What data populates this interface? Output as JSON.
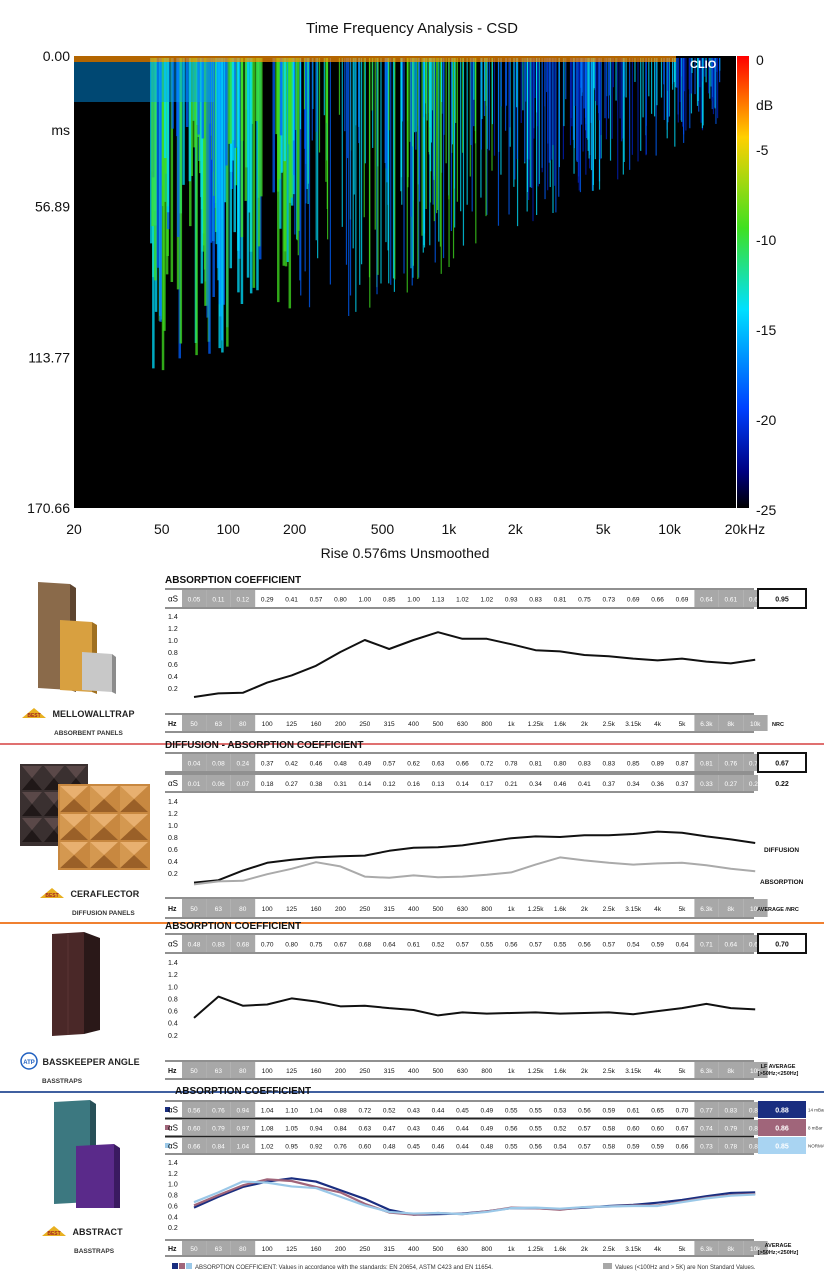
{
  "csd": {
    "title": "Time Frequency Analysis - CSD",
    "footer": "Rise 0.576ms   Unsmoothed",
    "y_ticks": [
      "0.00",
      "ms",
      "56.89",
      "113.77",
      "170.66"
    ],
    "x_ticks": [
      "20",
      "50",
      "100",
      "200",
      "500",
      "1k",
      "2k",
      "5k",
      "10k",
      "20k",
      "Hz"
    ],
    "scale_ticks": [
      "0",
      "dB",
      "-5",
      "-10",
      "-15",
      "-20",
      "-25"
    ],
    "watermark": "CLIO"
  },
  "freq_labels": [
    "50",
    "63",
    "80",
    "100",
    "125",
    "160",
    "200",
    "250",
    "315",
    "400",
    "500",
    "630",
    "800",
    "1k",
    "1.25k",
    "1.6k",
    "2k",
    "2.5k",
    "3.15k",
    "4k",
    "5k",
    "6.3k",
    "8k",
    "10k"
  ],
  "y_axis_ticks": [
    "1.4",
    "1.2",
    "1.0",
    "0.8",
    "0.6",
    "0.4",
    "0.2"
  ],
  "products": [
    {
      "name": "MELLOWALLTRAP",
      "sub": "ABSORBENT PANELS"
    },
    {
      "name": "CERAFLECTOR",
      "sub": "DIFFUSION PANELS"
    },
    {
      "name": "BASSKEEPER ANGLE",
      "sub": "BASSTRAPS"
    },
    {
      "name": "ABSTRACT",
      "sub": "BASSTRAPS"
    }
  ],
  "sections": [
    {
      "title": "ABSORPTION COEFFICIENT",
      "hz_label": "Hz",
      "summary_label": "NRC",
      "rows": [
        {
          "label": "αS",
          "values": [
            "0.05",
            "0.11",
            "0.12",
            "0.29",
            "0.41",
            "0.57",
            "0.80",
            "1.00",
            "0.85",
            "1.00",
            "1.13",
            "1.02",
            "1.02",
            "0.93",
            "0.83",
            "0.81",
            "0.75",
            "0.73",
            "0.69",
            "0.66",
            "0.69",
            "0.64",
            "0.61",
            "0.67"
          ],
          "summary": "0.95"
        }
      ]
    },
    {
      "title": "DIFFUSION - ABSORPTION COEFFICIENT",
      "hz_label": "Hz",
      "summary_label": "AVERAGE /NRC",
      "rows": [
        {
          "label": "",
          "values": [
            "0.04",
            "0.08",
            "0.24",
            "0.37",
            "0.42",
            "0.46",
            "0.48",
            "0.49",
            "0.57",
            "0.62",
            "0.63",
            "0.66",
            "0.72",
            "0.78",
            "0.81",
            "0.80",
            "0.83",
            "0.83",
            "0.85",
            "0.89",
            "0.87",
            "0.81",
            "0.76",
            "0.70"
          ],
          "summary": "0.67"
        },
        {
          "label": "αS",
          "values": [
            "0.01",
            "0.06",
            "0.07",
            "0.18",
            "0.27",
            "0.38",
            "0.31",
            "0.14",
            "0.12",
            "0.16",
            "0.13",
            "0.14",
            "0.17",
            "0.21",
            "0.34",
            "0.46",
            "0.41",
            "0.37",
            "0.34",
            "0.36",
            "0.37",
            "0.33",
            "0.27",
            "0.23"
          ],
          "summary": "0.22"
        }
      ],
      "line_labels": [
        "DIFFUSION",
        "ABSORPTION"
      ]
    },
    {
      "title": "ABSORPTION COEFFICIENT",
      "hz_label": "Hz",
      "summary_label": "LF AVERAGE [>50Hz;<250Hz]",
      "rows": [
        {
          "label": "αS",
          "values": [
            "0.48",
            "0.83",
            "0.68",
            "0.70",
            "0.80",
            "0.75",
            "0.67",
            "0.68",
            "0.64",
            "0.61",
            "0.52",
            "0.57",
            "0.55",
            "0.56",
            "0.57",
            "0.55",
            "0.56",
            "0.57",
            "0.54",
            "0.59",
            "0.64",
            "0.71",
            "0.64",
            "0.62"
          ],
          "summary": "0.70"
        }
      ]
    },
    {
      "title": "ABSORPTION COEFFICIENT",
      "hz_label": "Hz",
      "summary_label": "AVERAGE [>50Hz;<250Hz]",
      "rows": [
        {
          "label": "αS",
          "values": [
            "0.56",
            "0.76",
            "0.94",
            "1.04",
            "1.10",
            "1.04",
            "0.88",
            "0.72",
            "0.52",
            "0.43",
            "0.44",
            "0.45",
            "0.49",
            "0.55",
            "0.55",
            "0.53",
            "0.56",
            "0.59",
            "0.61",
            "0.65",
            "0.70",
            "0.77",
            "0.83",
            "0.84"
          ],
          "summary": "0.88",
          "note": "14 mBar PRESSURE"
        },
        {
          "label": "αS",
          "values": [
            "0.60",
            "0.79",
            "0.97",
            "1.08",
            "1.05",
            "0.94",
            "0.84",
            "0.63",
            "0.47",
            "0.43",
            "0.46",
            "0.44",
            "0.49",
            "0.56",
            "0.55",
            "0.52",
            "0.57",
            "0.58",
            "0.60",
            "0.60",
            "0.67",
            "0.74",
            "0.79",
            "0.81"
          ],
          "summary": "0.86",
          "note": "8 mBar PRESSURE"
        },
        {
          "label": "αS",
          "values": [
            "0.66",
            "0.84",
            "1.04",
            "1.02",
            "0.95",
            "0.92",
            "0.76",
            "0.60",
            "0.48",
            "0.45",
            "0.46",
            "0.44",
            "0.48",
            "0.55",
            "0.56",
            "0.54",
            "0.57",
            "0.58",
            "0.59",
            "0.59",
            "0.66",
            "0.73",
            "0.78",
            "0.80"
          ],
          "summary": "0.85",
          "note": "NORMAL PRESSURE"
        }
      ],
      "footnote_left": "ABSORPTION COEFFICIENT: Values in accordance with the standards: EN 20654, ASTM C423 and EN 11654.",
      "footnote_right": "Values (<100Hz and > 5K) are Non Standard Values."
    }
  ],
  "colors": {
    "line": "#111111",
    "absorption_line": "#aaaaaa",
    "nonstd_cell": "#a8a8a8",
    "series": [
      "#1a2e80",
      "#a0657a",
      "#9ac8e8"
    ],
    "summary_fill": [
      "#1a2e80",
      "#a0657a",
      "#a9d4f2"
    ],
    "sep_red": "#e07070",
    "sep_orange": "#f08030",
    "sep_blue": "#4060a0"
  },
  "chart_data": [
    {
      "type": "heatmap",
      "title": "Time Frequency Analysis - CSD",
      "xlabel": "Hz",
      "ylabel": "ms",
      "x_scale": "log",
      "xlim": [
        20,
        20000
      ],
      "ylim": [
        0,
        170.66
      ],
      "colorbar": {
        "label": "dB",
        "range": [
          -25,
          0
        ]
      },
      "note": "Rise 0.576ms   Unsmoothed"
    },
    {
      "type": "line",
      "title": "ABSORPTION COEFFICIENT",
      "categories": [
        "50",
        "63",
        "80",
        "100",
        "125",
        "160",
        "200",
        "250",
        "315",
        "400",
        "500",
        "630",
        "800",
        "1k",
        "1.25k",
        "1.6k",
        "2k",
        "2.5k",
        "3.15k",
        "4k",
        "5k",
        "6.3k",
        "8k",
        "10k"
      ],
      "series": [
        {
          "name": "αS",
          "values": [
            0.05,
            0.11,
            0.12,
            0.29,
            0.41,
            0.57,
            0.8,
            1.0,
            0.85,
            1.0,
            1.13,
            1.02,
            1.02,
            0.93,
            0.83,
            0.81,
            0.75,
            0.73,
            0.69,
            0.66,
            0.69,
            0.64,
            0.61,
            0.67
          ]
        }
      ],
      "ylim": [
        0,
        1.4
      ]
    },
    {
      "type": "line",
      "title": "DIFFUSION - ABSORPTION COEFFICIENT",
      "categories": [
        "50",
        "63",
        "80",
        "100",
        "125",
        "160",
        "200",
        "250",
        "315",
        "400",
        "500",
        "630",
        "800",
        "1k",
        "1.25k",
        "1.6k",
        "2k",
        "2.5k",
        "3.15k",
        "4k",
        "5k",
        "6.3k",
        "8k",
        "10k"
      ],
      "series": [
        {
          "name": "DIFFUSION",
          "values": [
            0.04,
            0.08,
            0.24,
            0.37,
            0.42,
            0.46,
            0.48,
            0.49,
            0.57,
            0.62,
            0.63,
            0.66,
            0.72,
            0.78,
            0.81,
            0.8,
            0.83,
            0.83,
            0.85,
            0.89,
            0.87,
            0.81,
            0.76,
            0.7
          ]
        },
        {
          "name": "ABSORPTION",
          "values": [
            0.01,
            0.06,
            0.07,
            0.18,
            0.27,
            0.38,
            0.31,
            0.14,
            0.12,
            0.16,
            0.13,
            0.14,
            0.17,
            0.21,
            0.34,
            0.46,
            0.41,
            0.37,
            0.34,
            0.36,
            0.37,
            0.33,
            0.27,
            0.23
          ]
        }
      ],
      "ylim": [
        0,
        1.4
      ]
    },
    {
      "type": "line",
      "title": "ABSORPTION COEFFICIENT",
      "categories": [
        "50",
        "63",
        "80",
        "100",
        "125",
        "160",
        "200",
        "250",
        "315",
        "400",
        "500",
        "630",
        "800",
        "1k",
        "1.25k",
        "1.6k",
        "2k",
        "2.5k",
        "3.15k",
        "4k",
        "5k",
        "6.3k",
        "8k",
        "10k"
      ],
      "series": [
        {
          "name": "αS",
          "values": [
            0.48,
            0.83,
            0.68,
            0.7,
            0.8,
            0.75,
            0.67,
            0.68,
            0.64,
            0.61,
            0.52,
            0.57,
            0.55,
            0.56,
            0.57,
            0.55,
            0.56,
            0.57,
            0.54,
            0.59,
            0.64,
            0.71,
            0.64,
            0.62
          ]
        }
      ],
      "ylim": [
        0,
        1.4
      ]
    },
    {
      "type": "line",
      "title": "ABSORPTION COEFFICIENT",
      "categories": [
        "50",
        "63",
        "80",
        "100",
        "125",
        "160",
        "200",
        "250",
        "315",
        "400",
        "500",
        "630",
        "800",
        "1k",
        "1.25k",
        "1.6k",
        "2k",
        "2.5k",
        "3.15k",
        "4k",
        "5k",
        "6.3k",
        "8k",
        "10k"
      ],
      "series": [
        {
          "name": "14 mBar PRESSURE",
          "values": [
            0.56,
            0.76,
            0.94,
            1.04,
            1.1,
            1.04,
            0.88,
            0.72,
            0.52,
            0.43,
            0.44,
            0.45,
            0.49,
            0.55,
            0.55,
            0.53,
            0.56,
            0.59,
            0.61,
            0.65,
            0.7,
            0.77,
            0.83,
            0.84
          ]
        },
        {
          "name": "8 mBar PRESSURE",
          "values": [
            0.6,
            0.79,
            0.97,
            1.08,
            1.05,
            0.94,
            0.84,
            0.63,
            0.47,
            0.43,
            0.46,
            0.44,
            0.49,
            0.56,
            0.55,
            0.52,
            0.57,
            0.58,
            0.6,
            0.6,
            0.67,
            0.74,
            0.79,
            0.81
          ]
        },
        {
          "name": "NORMAL PRESSURE",
          "values": [
            0.66,
            0.84,
            1.04,
            1.02,
            0.95,
            0.92,
            0.76,
            0.6,
            0.48,
            0.45,
            0.46,
            0.44,
            0.48,
            0.55,
            0.56,
            0.54,
            0.57,
            0.58,
            0.59,
            0.59,
            0.66,
            0.73,
            0.78,
            0.8
          ]
        }
      ],
      "ylim": [
        0,
        1.4
      ]
    }
  ]
}
